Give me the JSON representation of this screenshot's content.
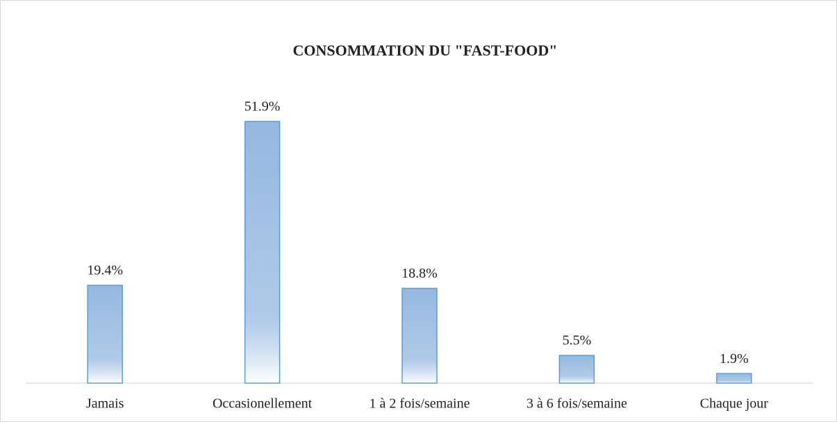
{
  "chart_data": {
    "type": "bar",
    "title": "CONSOMMATION DU \"FAST-FOOD\"",
    "categories": [
      "Jamais",
      "Occasionellement",
      "1 à 2 fois/semaine",
      "3 à 6 fois/semaine",
      "Chaque jour"
    ],
    "values": [
      19.4,
      51.9,
      18.8,
      5.5,
      1.9
    ],
    "value_labels": [
      "19.4%",
      "51.9%",
      "18.8%",
      "5.5%",
      "1.9%"
    ],
    "color": "#95b8e0"
  }
}
